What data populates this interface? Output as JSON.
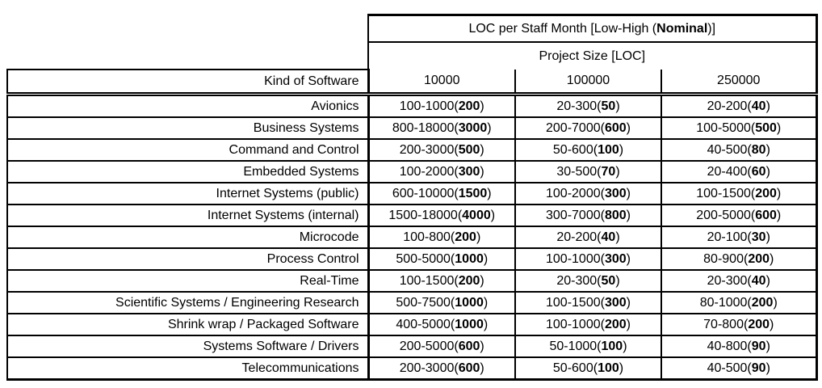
{
  "table": {
    "title": {
      "prefix": "LOC per Staff Month [Low-High (",
      "nominal": "Nominal",
      "suffix": ")]"
    },
    "subtitle": "Project Size [LOC]",
    "row_header": "Kind of Software",
    "columns": [
      "10000",
      "100000",
      "250000"
    ],
    "rows": [
      {
        "label": "Avionics",
        "cells": [
          {
            "range": "100-1000",
            "nominal": "200"
          },
          {
            "range": "20-300",
            "nominal": "50"
          },
          {
            "range": "20-200",
            "nominal": "40"
          }
        ]
      },
      {
        "label": "Business Systems",
        "cells": [
          {
            "range": "800-18000",
            "nominal": "3000"
          },
          {
            "range": "200-7000",
            "nominal": "600"
          },
          {
            "range": "100-5000",
            "nominal": "500"
          }
        ]
      },
      {
        "label": "Command and Control",
        "cells": [
          {
            "range": "200-3000",
            "nominal": "500"
          },
          {
            "range": "50-600",
            "nominal": "100"
          },
          {
            "range": "40-500",
            "nominal": "80"
          }
        ]
      },
      {
        "label": "Embedded Systems",
        "cells": [
          {
            "range": "100-2000",
            "nominal": "300"
          },
          {
            "range": "30-500",
            "nominal": "70"
          },
          {
            "range": "20-400",
            "nominal": "60"
          }
        ]
      },
      {
        "label": "Internet Systems (public)",
        "cells": [
          {
            "range": "600-10000",
            "nominal": "1500"
          },
          {
            "range": "100-2000",
            "nominal": "300"
          },
          {
            "range": "100-1500",
            "nominal": "200"
          }
        ]
      },
      {
        "label": "Internet Systems (internal)",
        "cells": [
          {
            "range": "1500-18000",
            "nominal": "4000"
          },
          {
            "range": "300-7000",
            "nominal": "800"
          },
          {
            "range": "200-5000",
            "nominal": "600"
          }
        ]
      },
      {
        "label": "Microcode",
        "cells": [
          {
            "range": "100-800",
            "nominal": "200"
          },
          {
            "range": "20-200",
            "nominal": "40"
          },
          {
            "range": "20-100",
            "nominal": "30"
          }
        ]
      },
      {
        "label": "Process Control",
        "cells": [
          {
            "range": "500-5000",
            "nominal": "1000"
          },
          {
            "range": "100-1000",
            "nominal": "300"
          },
          {
            "range": "80-900",
            "nominal": "200"
          }
        ]
      },
      {
        "label": "Real-Time",
        "cells": [
          {
            "range": "100-1500",
            "nominal": "200"
          },
          {
            "range": "20-300",
            "nominal": "50"
          },
          {
            "range": "20-300",
            "nominal": "40"
          }
        ]
      },
      {
        "label": "Scientific Systems / Engineering Research",
        "cells": [
          {
            "range": "500-7500",
            "nominal": "1000"
          },
          {
            "range": "100-1500",
            "nominal": "300"
          },
          {
            "range": "80-1000",
            "nominal": "200"
          }
        ]
      },
      {
        "label": "Shrink wrap / Packaged Software",
        "cells": [
          {
            "range": "400-5000",
            "nominal": "1000"
          },
          {
            "range": "100-1000",
            "nominal": "200"
          },
          {
            "range": "70-800",
            "nominal": "200"
          }
        ]
      },
      {
        "label": "Systems Software / Drivers",
        "cells": [
          {
            "range": "200-5000",
            "nominal": "600"
          },
          {
            "range": "50-1000",
            "nominal": "100"
          },
          {
            "range": "40-800",
            "nominal": "90"
          }
        ]
      },
      {
        "label": "Telecommunications",
        "cells": [
          {
            "range": "200-3000",
            "nominal": "600"
          },
          {
            "range": "50-600",
            "nominal": "100"
          },
          {
            "range": "40-500",
            "nominal": "90"
          }
        ]
      }
    ]
  },
  "colors": {
    "border": "#000000",
    "text": "#000000",
    "background": "#ffffff"
  }
}
